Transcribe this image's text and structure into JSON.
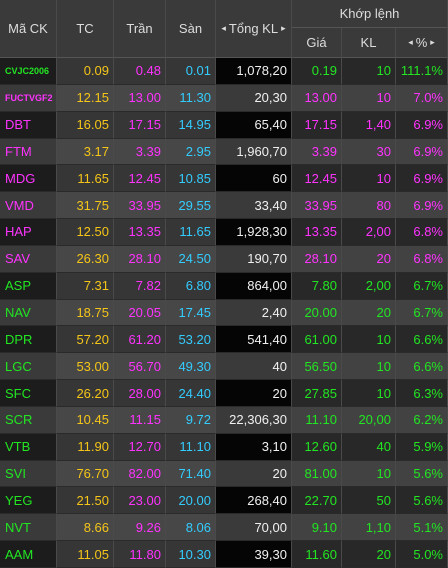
{
  "header": {
    "columns": [
      "Mã CK",
      "TC",
      "Trần",
      "Sàn",
      "Tổng KL"
    ],
    "group": "Khớp lệnh",
    "sub_columns": [
      "Giá",
      "KL",
      "%"
    ]
  },
  "table": {
    "rows": [
      [
        "CVJC2006",
        "0.09",
        "0.48",
        "0.01",
        "1,078,20",
        "0.19",
        "10",
        "111.1%"
      ],
      [
        "FUCTVGF2",
        "12.15",
        "13.00",
        "11.30",
        "20,30",
        "13.00",
        "10",
        "7.0%"
      ],
      [
        "DBT",
        "16.05",
        "17.15",
        "14.95",
        "65,40",
        "17.15",
        "1,40",
        "6.9%"
      ],
      [
        "FTM",
        "3.17",
        "3.39",
        "2.95",
        "1,960,70",
        "3.39",
        "30",
        "6.9%"
      ],
      [
        "MDG",
        "11.65",
        "12.45",
        "10.85",
        "60",
        "12.45",
        "10",
        "6.9%"
      ],
      [
        "VMD",
        "31.75",
        "33.95",
        "29.55",
        "33,40",
        "33.95",
        "80",
        "6.9%"
      ],
      [
        "HAP",
        "12.50",
        "13.35",
        "11.65",
        "1,928,30",
        "13.35",
        "2,00",
        "6.8%"
      ],
      [
        "SAV",
        "26.30",
        "28.10",
        "24.50",
        "190,70",
        "28.10",
        "20",
        "6.8%"
      ],
      [
        "ASP",
        "7.31",
        "7.82",
        "6.80",
        "864,00",
        "7.80",
        "2,00",
        "6.7%"
      ],
      [
        "NAV",
        "18.75",
        "20.05",
        "17.45",
        "2,40",
        "20.00",
        "20",
        "6.7%"
      ],
      [
        "DPR",
        "57.20",
        "61.20",
        "53.20",
        "541,40",
        "61.00",
        "10",
        "6.6%"
      ],
      [
        "LGC",
        "53.00",
        "56.70",
        "49.30",
        "40",
        "56.50",
        "10",
        "6.6%"
      ],
      [
        "SFC",
        "26.20",
        "28.00",
        "24.40",
        "20",
        "27.85",
        "10",
        "6.3%"
      ],
      [
        "SCR",
        "10.45",
        "11.15",
        "9.72",
        "22,306,30",
        "11.10",
        "20,00",
        "6.2%"
      ],
      [
        "VTB",
        "11.90",
        "12.70",
        "11.10",
        "3,10",
        "12.60",
        "40",
        "5.9%"
      ],
      [
        "SVI",
        "76.70",
        "82.00",
        "71.40",
        "20",
        "81.00",
        "10",
        "5.6%"
      ],
      [
        "YEG",
        "21.50",
        "23.00",
        "20.00",
        "268,40",
        "22.70",
        "50",
        "5.6%"
      ],
      [
        "NVT",
        "8.66",
        "9.26",
        "8.06",
        "70,00",
        "9.10",
        "1,10",
        "5.1%"
      ],
      [
        "AAM",
        "11.05",
        "11.80",
        "10.30",
        "39,30",
        "11.60",
        "20",
        "5.0%"
      ]
    ]
  }
}
